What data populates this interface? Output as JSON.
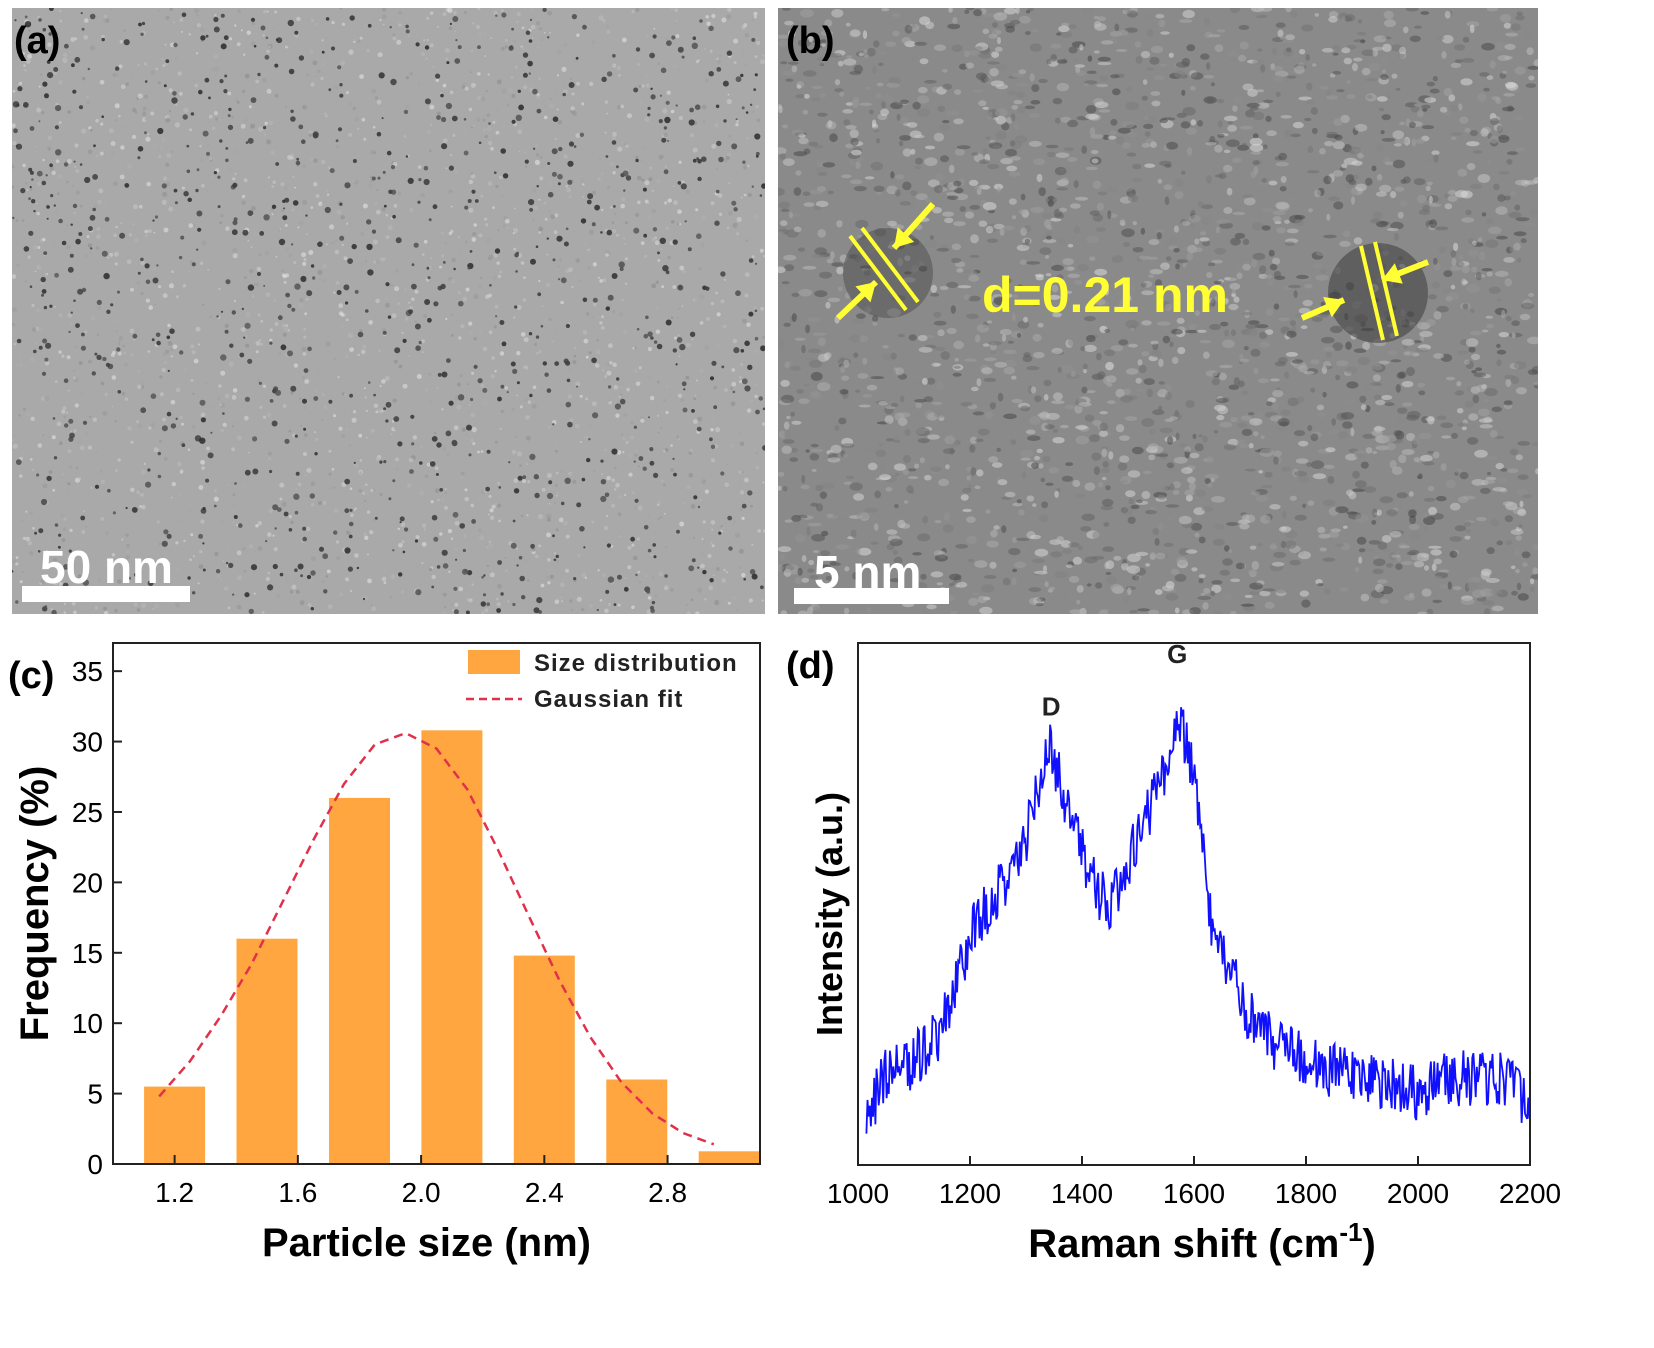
{
  "panels": {
    "a": {
      "label": "(a)",
      "scale_label": "50 nm"
    },
    "b": {
      "label": "(b)",
      "scale_label": "5 nm",
      "annotation": "d=0.21 nm"
    },
    "c": {
      "label": "(c)"
    },
    "d": {
      "label": "(d)"
    }
  },
  "chart_data": [
    {
      "type": "bar",
      "panel": "c",
      "xlabel": "Particle size (nm)",
      "ylabel": "Frequency (%)",
      "xlim": [
        1.0,
        3.1
      ],
      "ylim": [
        0,
        37
      ],
      "xticks": [
        "1.2",
        "1.6",
        "2.0",
        "2.4",
        "2.8"
      ],
      "yticks": [
        "0",
        "5",
        "10",
        "15",
        "20",
        "25",
        "30",
        "35"
      ],
      "categories": [
        1.2,
        1.5,
        1.8,
        2.1,
        2.4,
        2.7,
        3.0
      ],
      "series": [
        {
          "name": "Size distribution",
          "values": [
            5.5,
            16,
            26,
            30.8,
            14.8,
            6,
            0.9
          ],
          "color": "#FFA640"
        },
        {
          "name": "Gaussian fit",
          "type": "line",
          "style": "dashed",
          "color": "#E0304A",
          "x": [
            1.15,
            1.25,
            1.35,
            1.45,
            1.55,
            1.65,
            1.75,
            1.85,
            1.95,
            2.05,
            2.15,
            2.25,
            2.35,
            2.45,
            2.55,
            2.65,
            2.75,
            2.85,
            2.95
          ],
          "values": [
            4.8,
            7.3,
            10.5,
            14.2,
            18.6,
            23.0,
            27.0,
            29.8,
            30.6,
            29.5,
            26.6,
            22.3,
            17.6,
            13.0,
            9.0,
            5.8,
            3.6,
            2.2,
            1.4
          ]
        }
      ],
      "legend": {
        "position": "top-right",
        "entries": [
          "Size distribution",
          "Gaussian fit"
        ]
      }
    },
    {
      "type": "line",
      "panel": "d",
      "xlabel": "Raman shift (cm",
      "xlabel_sup": "-1",
      "xlabel_end": ")",
      "ylabel": "Intensity (a.u.)",
      "xlim": [
        1000,
        2200
      ],
      "ylim": [
        0,
        100
      ],
      "xticks": [
        "1000",
        "1200",
        "1400",
        "1600",
        "1800",
        "2000",
        "2200"
      ],
      "annotations": [
        {
          "text": "D",
          "x": 1345,
          "y": 85
        },
        {
          "text": "G",
          "x": 1570,
          "y": 95
        }
      ],
      "series": [
        {
          "name": "",
          "color": "#1010FF",
          "x": [
            1015,
            1050,
            1100,
            1150,
            1200,
            1250,
            1300,
            1330,
            1345,
            1370,
            1400,
            1440,
            1470,
            1500,
            1540,
            1570,
            1600,
            1630,
            1660,
            1700,
            1750,
            1800,
            1850,
            1900,
            1950,
            2000,
            2050,
            2100,
            2150,
            2200
          ],
          "values": [
            8,
            18,
            20,
            26,
            44,
            52,
            62,
            76,
            80,
            70,
            60,
            50,
            52,
            64,
            72,
            87,
            75,
            46,
            38,
            28,
            22,
            20,
            18,
            16,
            15,
            14,
            16,
            17,
            16,
            12
          ]
        }
      ]
    }
  ]
}
